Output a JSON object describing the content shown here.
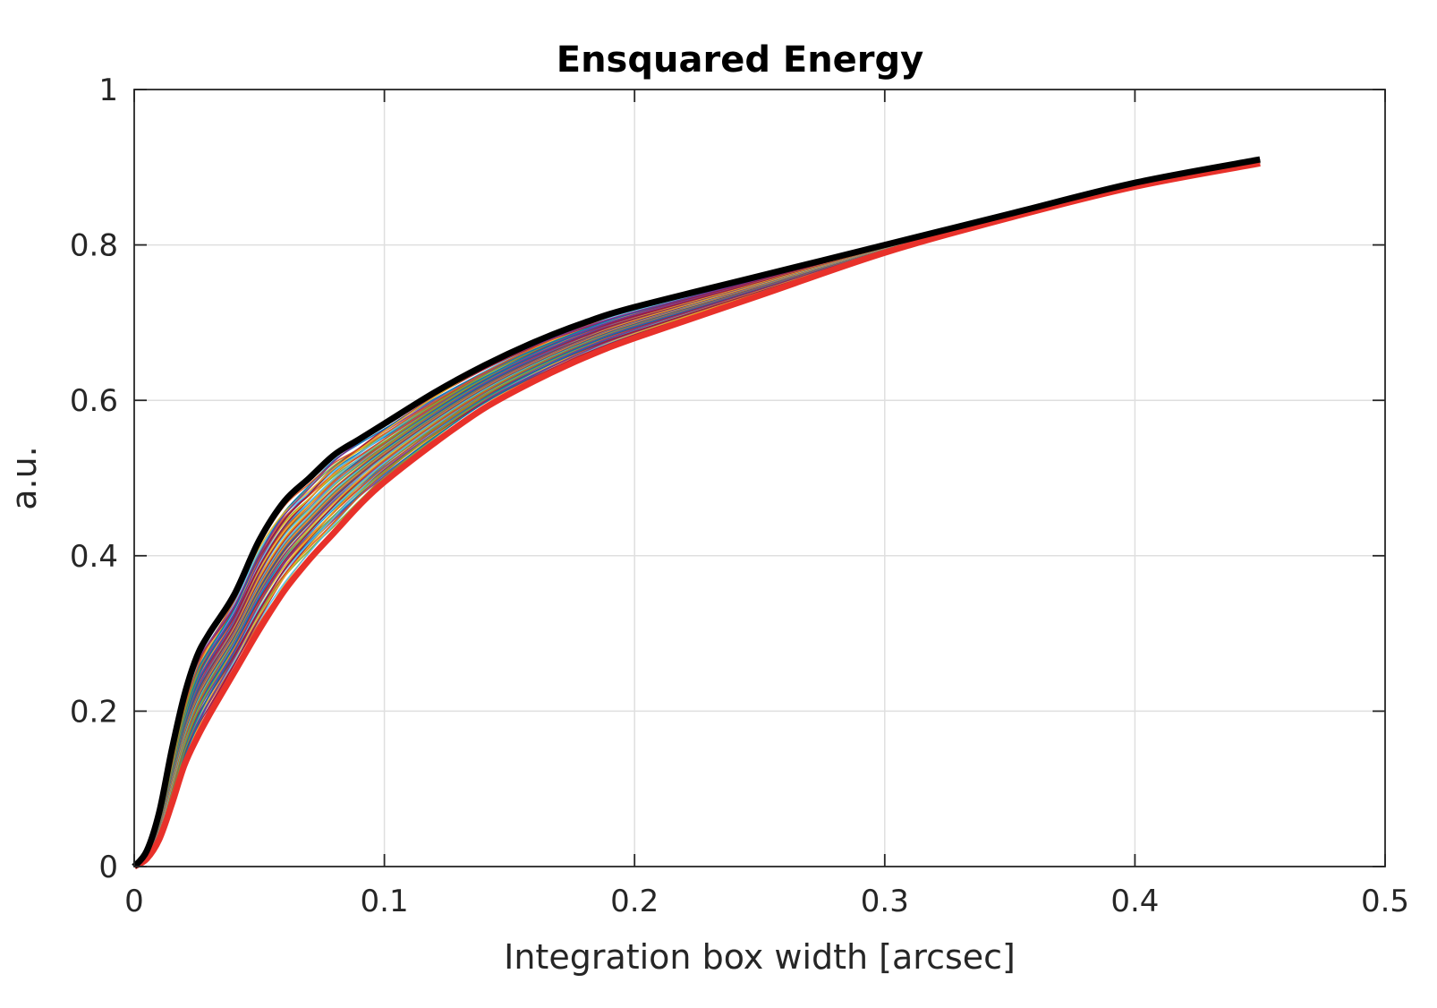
{
  "chart_data": {
    "type": "line",
    "title": "Ensquared Energy",
    "xlabel": "Integration box width [arcsec]",
    "ylabel": "a.u.",
    "xlim": [
      0,
      0.5
    ],
    "ylim": [
      0,
      1
    ],
    "xticks": [
      0,
      0.1,
      0.2,
      0.3,
      0.4,
      0.5
    ],
    "xtick_labels": [
      "0",
      "0.1",
      "0.2",
      "0.3",
      "0.4",
      "0.5"
    ],
    "yticks": [
      0,
      0.2,
      0.4,
      0.6,
      0.8,
      1
    ],
    "ytick_labels": [
      "0",
      "0.2",
      "0.4",
      "0.6",
      "0.8",
      "1"
    ],
    "grid": true,
    "x": [
      0,
      0.005,
      0.01,
      0.015,
      0.02,
      0.025,
      0.03,
      0.04,
      0.05,
      0.06,
      0.07,
      0.08,
      0.09,
      0.1,
      0.12,
      0.14,
      0.16,
      0.18,
      0.2,
      0.25,
      0.3,
      0.35,
      0.4,
      0.45
    ],
    "bundle_count": 60,
    "bundle_palette": [
      "#0072bd",
      "#d95319",
      "#edb120",
      "#7e2f8e",
      "#77ac30",
      "#4dbeee",
      "#a2142f"
    ],
    "envelope_upper": {
      "color": "#000000",
      "values": [
        0,
        0.02,
        0.07,
        0.15,
        0.22,
        0.27,
        0.3,
        0.35,
        0.42,
        0.47,
        0.5,
        0.53,
        0.55,
        0.57,
        0.61,
        0.645,
        0.675,
        0.7,
        0.72,
        0.76,
        0.8,
        0.84,
        0.88,
        0.91
      ]
    },
    "envelope_lower": {
      "color": "#e8312a",
      "values": [
        0,
        0.01,
        0.035,
        0.08,
        0.13,
        0.165,
        0.195,
        0.25,
        0.305,
        0.355,
        0.395,
        0.43,
        0.465,
        0.495,
        0.545,
        0.59,
        0.625,
        0.655,
        0.68,
        0.735,
        0.79,
        0.835,
        0.875,
        0.905
      ]
    }
  }
}
